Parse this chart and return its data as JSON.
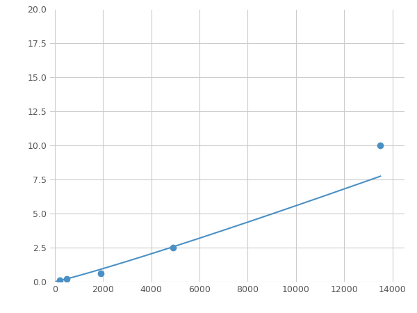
{
  "x": [
    200,
    500,
    1900,
    4900,
    13500
  ],
  "y": [
    0.1,
    0.2,
    0.6,
    2.5,
    10.0
  ],
  "line_color": "#4a90c4",
  "marker_color": "#4a90c4",
  "marker_size": 7,
  "xlim": [
    -200,
    14500
  ],
  "ylim": [
    0,
    20.0
  ],
  "xticks": [
    0,
    2000,
    4000,
    6000,
    8000,
    10000,
    12000,
    14000
  ],
  "yticks": [
    0.0,
    2.5,
    5.0,
    7.5,
    10.0,
    12.5,
    15.0,
    17.5,
    20.0
  ],
  "background_color": "#ffffff",
  "grid_color": "#cccccc",
  "figsize": [
    6.0,
    4.5
  ],
  "dpi": 100
}
